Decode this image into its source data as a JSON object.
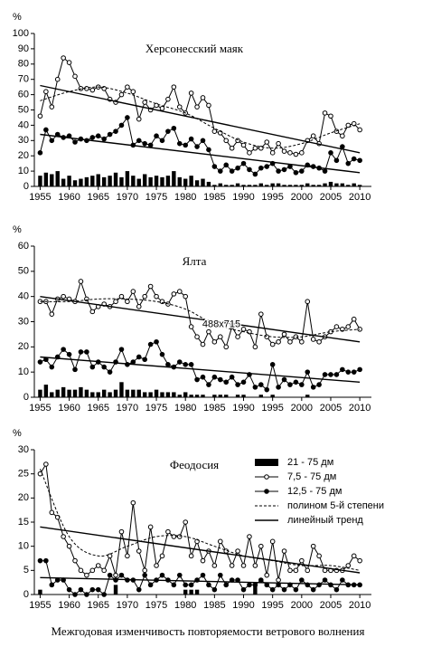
{
  "chart_data": [
    {
      "type": "combo",
      "title": "Херсонесский маяк",
      "y_label": "%",
      "x": [
        1955,
        1956,
        1957,
        1958,
        1959,
        1960,
        1961,
        1962,
        1963,
        1964,
        1965,
        1966,
        1967,
        1968,
        1969,
        1970,
        1971,
        1972,
        1973,
        1974,
        1975,
        1976,
        1977,
        1978,
        1979,
        1980,
        1981,
        1982,
        1983,
        1984,
        1985,
        1986,
        1987,
        1988,
        1989,
        1990,
        1991,
        1992,
        1993,
        1994,
        1995,
        1996,
        1997,
        1998,
        1999,
        2000,
        2001,
        2002,
        2003,
        2004,
        2005,
        2006,
        2007,
        2008,
        2009,
        2010
      ],
      "xlim": [
        1954,
        2012
      ],
      "xticks": [
        1955,
        1960,
        1965,
        1970,
        1975,
        1980,
        1985,
        1990,
        1995,
        2000,
        2005,
        2010
      ],
      "ylim": [
        0,
        100
      ],
      "yticks": [
        0,
        10,
        20,
        30,
        40,
        50,
        60,
        70,
        80,
        90,
        100
      ],
      "series": [
        {
          "style": "bar",
          "color": "#000000",
          "values": [
            7,
            9,
            8,
            10,
            5,
            7,
            4,
            5,
            6,
            7,
            8,
            6,
            7,
            9,
            6,
            10,
            7,
            5,
            8,
            6,
            7,
            6,
            7,
            10,
            6,
            5,
            7,
            4,
            5,
            3,
            1,
            2,
            1,
            1,
            2,
            1,
            1,
            1,
            2,
            1,
            2,
            2,
            1,
            1,
            1,
            1,
            2,
            1,
            1,
            2,
            3,
            2,
            2,
            1,
            2,
            1
          ]
        },
        {
          "style": "open",
          "color": "#000000",
          "values": [
            46,
            62,
            52,
            70,
            84,
            81,
            72,
            64,
            64,
            63,
            65,
            64,
            57,
            55,
            60,
            65,
            62,
            44,
            55,
            50,
            53,
            51,
            57,
            65,
            52,
            48,
            61,
            52,
            58,
            53,
            36,
            35,
            30,
            25,
            30,
            27,
            22,
            25,
            25,
            29,
            22,
            28,
            23,
            22,
            21,
            22,
            30,
            33,
            28,
            48,
            46,
            36,
            33,
            40,
            41,
            37
          ]
        },
        {
          "style": "filled",
          "color": "#000000",
          "values": [
            22,
            37,
            30,
            34,
            32,
            33,
            29,
            31,
            30,
            32,
            33,
            31,
            34,
            36,
            40,
            45,
            27,
            30,
            28,
            27,
            33,
            30,
            36,
            38,
            28,
            27,
            31,
            26,
            30,
            24,
            13,
            10,
            14,
            10,
            12,
            15,
            11,
            8,
            12,
            13,
            15,
            10,
            11,
            13,
            9,
            10,
            14,
            13,
            12,
            10,
            22,
            17,
            26,
            15,
            18,
            17
          ]
        }
      ],
      "trends": [
        {
          "style": "poly",
          "x": [
            1955,
            1960,
            1965,
            1970,
            1975,
            1980,
            1985,
            1990,
            1995,
            2000,
            2005,
            2010
          ],
          "values": [
            56,
            62,
            65,
            61,
            54,
            48,
            38,
            29,
            25,
            28,
            35,
            41
          ]
        },
        {
          "style": "linear",
          "x": [
            1955,
            2010
          ],
          "values": [
            66,
            22
          ]
        },
        {
          "style": "linear",
          "x": [
            1955,
            2010
          ],
          "values": [
            34,
            9
          ]
        }
      ]
    },
    {
      "type": "combo",
      "title": "Ялта",
      "y_label": "%",
      "annotation": "488x715",
      "x": [
        1955,
        1956,
        1957,
        1958,
        1959,
        1960,
        1961,
        1962,
        1963,
        1964,
        1965,
        1966,
        1967,
        1968,
        1969,
        1970,
        1971,
        1972,
        1973,
        1974,
        1975,
        1976,
        1977,
        1978,
        1979,
        1980,
        1981,
        1982,
        1983,
        1984,
        1985,
        1986,
        1987,
        1988,
        1989,
        1990,
        1991,
        1992,
        1993,
        1994,
        1995,
        1996,
        1997,
        1998,
        1999,
        2000,
        2001,
        2002,
        2003,
        2004,
        2005,
        2006,
        2007,
        2008,
        2009,
        2010
      ],
      "xlim": [
        1954,
        2012
      ],
      "xticks": [
        1955,
        1960,
        1965,
        1970,
        1975,
        1980,
        1985,
        1990,
        1995,
        2000,
        2005,
        2010
      ],
      "ylim": [
        0,
        60
      ],
      "yticks": [
        0,
        10,
        20,
        30,
        40,
        50,
        60
      ],
      "series": [
        {
          "style": "bar",
          "color": "#000000",
          "values": [
            3,
            5,
            2,
            3,
            4,
            3,
            3,
            4,
            3,
            2,
            2,
            3,
            2,
            3,
            6,
            3,
            3,
            3,
            2,
            2,
            3,
            2,
            2,
            2,
            1,
            2,
            1,
            1,
            1,
            0,
            1,
            1,
            1,
            0,
            1,
            1,
            0,
            0,
            1,
            0,
            1,
            0,
            0,
            0,
            0,
            0,
            1,
            0,
            0,
            0,
            0,
            0,
            0,
            0,
            0,
            0
          ]
        },
        {
          "style": "open",
          "color": "#000000",
          "values": [
            38,
            38,
            33,
            39,
            40,
            39,
            38,
            46,
            39,
            34,
            36,
            37,
            36,
            38,
            40,
            38,
            42,
            36,
            40,
            44,
            40,
            38,
            37,
            41,
            42,
            40,
            28,
            24,
            21,
            26,
            22,
            24,
            20,
            28,
            24,
            27,
            26,
            20,
            33,
            24,
            21,
            22,
            25,
            22,
            24,
            22,
            38,
            23,
            22,
            24,
            26,
            28,
            27,
            28,
            31,
            27
          ]
        },
        {
          "style": "filled",
          "color": "#000000",
          "values": [
            14,
            15,
            12,
            16,
            19,
            17,
            11,
            18,
            18,
            12,
            14,
            12,
            10,
            14,
            19,
            13,
            14,
            16,
            15,
            21,
            22,
            17,
            13,
            12,
            14,
            13,
            13,
            7,
            8,
            5,
            8,
            7,
            6,
            8,
            5,
            6,
            9,
            4,
            5,
            3,
            13,
            4,
            7,
            5,
            6,
            5,
            10,
            4,
            5,
            9,
            9,
            9,
            11,
            10,
            10,
            11
          ]
        }
      ],
      "trends": [
        {
          "style": "poly",
          "x": [
            1955,
            1960,
            1965,
            1970,
            1975,
            1980,
            1985,
            1990,
            1995,
            2000,
            2005,
            2010
          ],
          "values": [
            38,
            38,
            39,
            39,
            38,
            35,
            29,
            26,
            24,
            24,
            26,
            27
          ]
        },
        {
          "style": "linear",
          "x": [
            1955,
            2010
          ],
          "values": [
            40,
            22
          ]
        },
        {
          "style": "linear",
          "x": [
            1955,
            2010
          ],
          "values": [
            16,
            6
          ]
        }
      ]
    },
    {
      "type": "combo",
      "title": "Феодосия",
      "y_label": "%",
      "x": [
        1955,
        1956,
        1957,
        1958,
        1959,
        1960,
        1961,
        1962,
        1963,
        1964,
        1965,
        1966,
        1967,
        1968,
        1969,
        1970,
        1971,
        1972,
        1973,
        1974,
        1975,
        1976,
        1977,
        1978,
        1979,
        1980,
        1981,
        1982,
        1983,
        1984,
        1985,
        1986,
        1987,
        1988,
        1989,
        1990,
        1991,
        1992,
        1993,
        1994,
        1995,
        1996,
        1997,
        1998,
        1999,
        2000,
        2001,
        2002,
        2003,
        2004,
        2005,
        2006,
        2007,
        2008,
        2009,
        2010
      ],
      "xlim": [
        1954,
        2012
      ],
      "xticks": [
        1955,
        1960,
        1965,
        1970,
        1975,
        1980,
        1985,
        1990,
        1995,
        2000,
        2005,
        2010
      ],
      "ylim": [
        0,
        30
      ],
      "yticks": [
        0,
        5,
        10,
        15,
        20,
        25,
        30
      ],
      "series": [
        {
          "name": "21 - 75 дм",
          "style": "bar",
          "color": "#000000",
          "values": [
            1,
            0,
            0,
            0,
            0,
            0,
            0,
            0,
            0,
            0,
            0,
            0,
            0,
            2,
            0,
            0,
            0,
            0,
            0,
            0,
            0,
            0,
            0,
            0,
            0,
            1,
            1,
            1,
            0,
            0,
            0,
            0,
            0,
            0,
            0,
            0,
            0,
            2,
            0,
            0,
            0,
            0,
            0,
            0,
            0,
            0,
            0,
            0,
            0,
            0,
            0,
            0,
            0,
            0,
            0,
            0
          ]
        },
        {
          "name": "7,5 - 75 дм",
          "style": "open",
          "color": "#000000",
          "values": [
            25,
            27,
            17,
            16,
            12,
            10,
            7,
            5,
            4,
            5,
            6,
            5,
            8,
            4,
            13,
            8,
            19,
            9,
            5,
            14,
            6,
            8,
            13,
            12,
            12,
            15,
            8,
            11,
            7,
            9,
            6,
            11,
            9,
            6,
            9,
            6,
            12,
            6,
            10,
            4,
            11,
            3,
            9,
            5,
            5,
            7,
            5,
            10,
            8,
            5,
            5,
            5,
            5,
            6,
            8,
            7
          ]
        },
        {
          "name": "12,5 - 75 дм",
          "style": "filled",
          "color": "#000000",
          "values": [
            7,
            7,
            2,
            3,
            3,
            1,
            0,
            1,
            0,
            1,
            1,
            0,
            4,
            3,
            4,
            3,
            3,
            1,
            4,
            2,
            3,
            4,
            3,
            2,
            4,
            2,
            2,
            3,
            4,
            2,
            1,
            4,
            2,
            3,
            3,
            1,
            2,
            2,
            3,
            2,
            1,
            2,
            1,
            2,
            1,
            3,
            2,
            1,
            2,
            3,
            2,
            1,
            3,
            2,
            2,
            2
          ]
        }
      ],
      "trends": [
        {
          "name": "полином 5-й степени",
          "style": "poly",
          "x": [
            1955,
            1960,
            1965,
            1970,
            1975,
            1980,
            1985,
            1990,
            1995,
            2000,
            2005,
            2010
          ],
          "values": [
            26,
            12,
            8,
            10,
            12,
            12,
            10,
            8,
            7,
            6,
            6,
            5
          ]
        },
        {
          "name": "линейный тренд",
          "style": "linear",
          "x": [
            1955,
            2010
          ],
          "values": [
            14,
            4.5
          ]
        },
        {
          "style": "linear",
          "x": [
            1955,
            2010
          ],
          "values": [
            3.5,
            2
          ]
        }
      ]
    }
  ],
  "caption": "Межгодовая изменчивость повторяемости  ветрового волнения"
}
